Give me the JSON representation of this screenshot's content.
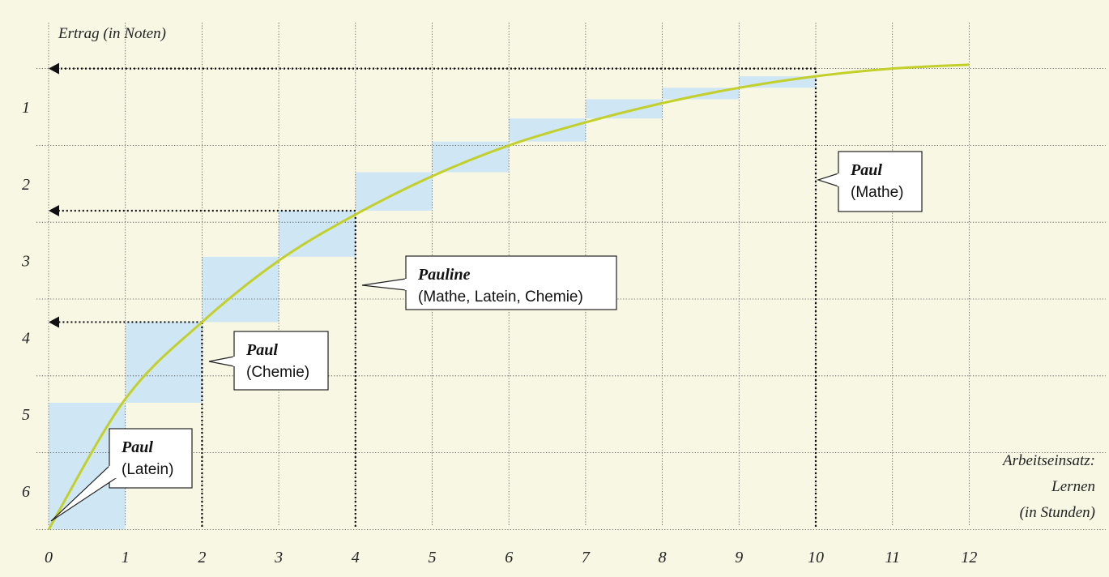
{
  "chart_data": {
    "type": "line",
    "title": "",
    "ylabel": "Ertrag (in Noten)",
    "xlabel_lines": [
      "Arbeitseinsatz:",
      "Lernen",
      "(in Stunden)"
    ],
    "x_ticks": [
      "0",
      "1",
      "2",
      "3",
      "4",
      "5",
      "6",
      "7",
      "8",
      "9",
      "10",
      "11",
      "12"
    ],
    "y_ticks": [
      "1",
      "2",
      "3",
      "4",
      "5",
      "6"
    ],
    "xlim": [
      0,
      12
    ],
    "ylim_top_to_bottom": [
      0.4,
      6.6
    ],
    "grid": true,
    "curve": {
      "x": [
        0,
        1,
        2,
        3,
        4,
        5,
        6,
        7,
        8,
        9,
        10,
        11,
        12
      ],
      "y": [
        6.5,
        4.8,
        3.8,
        3.0,
        2.4,
        1.9,
        1.5,
        1.2,
        0.95,
        0.75,
        0.6,
        0.5,
        0.45
      ]
    },
    "marginal_gain_steps": [
      {
        "x_from": 0,
        "x_to": 1,
        "y_from": 6.5,
        "y_to": 4.85
      },
      {
        "x_from": 1,
        "x_to": 2,
        "y_from": 4.85,
        "y_to": 3.8
      },
      {
        "x_from": 2,
        "x_to": 3,
        "y_from": 3.8,
        "y_to": 2.95
      },
      {
        "x_from": 3,
        "x_to": 4,
        "y_from": 2.95,
        "y_to": 2.35
      },
      {
        "x_from": 4,
        "x_to": 5,
        "y_from": 2.35,
        "y_to": 1.85
      },
      {
        "x_from": 5,
        "x_to": 6,
        "y_from": 1.85,
        "y_to": 1.45
      },
      {
        "x_from": 6,
        "x_to": 7,
        "y_from": 1.45,
        "y_to": 1.15
      },
      {
        "x_from": 7,
        "x_to": 8,
        "y_from": 1.15,
        "y_to": 0.9
      },
      {
        "x_from": 8,
        "x_to": 9,
        "y_from": 0.9,
        "y_to": 0.75
      },
      {
        "x_from": 9,
        "x_to": 10,
        "y_from": 0.75,
        "y_to": 0.6
      }
    ],
    "reference_lines": [
      {
        "x": 2,
        "y": 3.8
      },
      {
        "x": 4,
        "y": 2.35
      },
      {
        "x": 10,
        "y": 0.5
      }
    ],
    "annotations": [
      {
        "title": "Paul",
        "subtitle": "(Latein)",
        "x": 0,
        "y": 6.5
      },
      {
        "title": "Paul",
        "subtitle": "(Chemie)",
        "x": 2,
        "y": 4.6
      },
      {
        "title": "Pauline",
        "subtitle": "(Mathe, Latein, Chemie)",
        "x": 4,
        "y": 3.4
      },
      {
        "title": "Paul",
        "subtitle": "(Mathe)",
        "x": 10,
        "y": 1.9
      }
    ],
    "colors": {
      "background": "#f7f7e4",
      "curve": "#c3cf2a",
      "step_fill": "#cfe7f5",
      "grid": "#444444"
    }
  }
}
